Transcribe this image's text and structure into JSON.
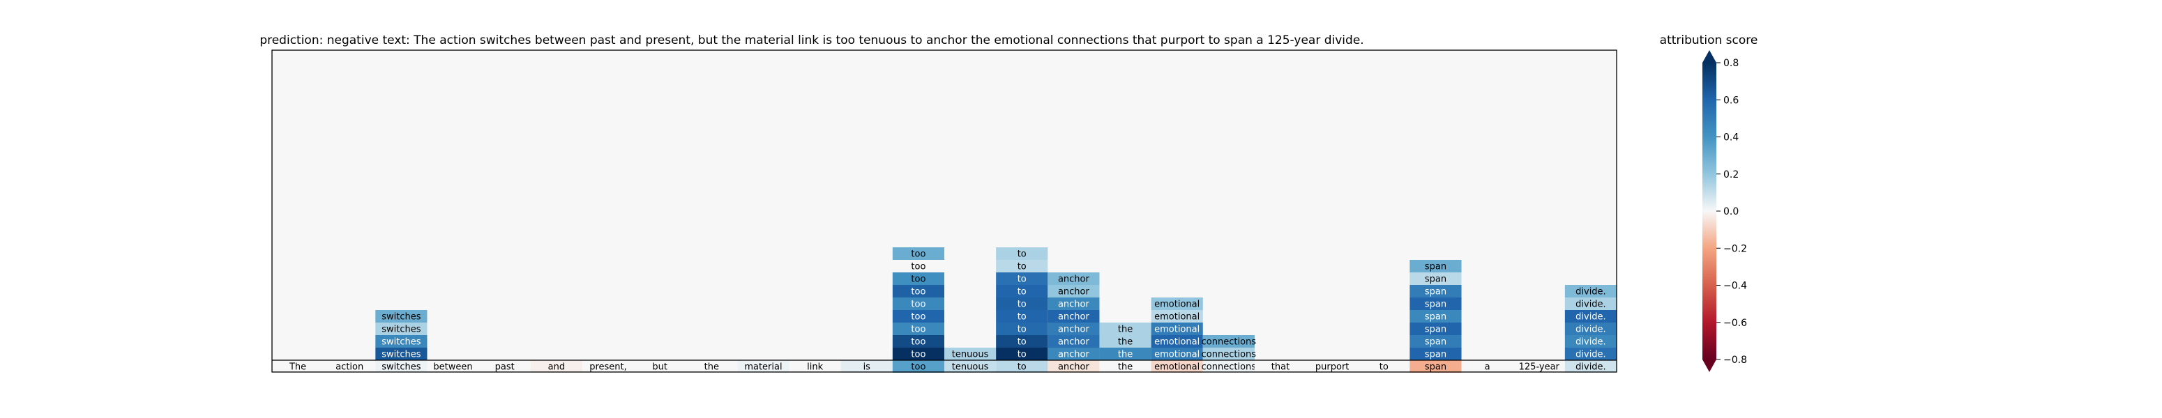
{
  "chart_data": {
    "type": "heatmap",
    "title": "prediction:  negative     text:  The action switches between past and present, but the material link is too tenuous to anchor the emotional connections that purport to span a 125-year divide.",
    "tokens": [
      "The",
      "action",
      "switches",
      "between",
      "past",
      "and",
      "present,",
      "but",
      "the",
      "material",
      "link",
      "is",
      "too",
      "tenuous",
      "to",
      "anchor",
      "the",
      "emotional",
      "connections",
      "that",
      "purport",
      "to",
      "span",
      "a",
      "125-year",
      "divide."
    ],
    "base_row_scores": [
      0.0,
      0.0,
      0.02,
      0.0,
      0.0,
      -0.02,
      0.0,
      0.0,
      0.0,
      0.02,
      0.0,
      0.04,
      0.35,
      0.1,
      0.12,
      -0.05,
      0.0,
      -0.08,
      0.02,
      0.0,
      0.0,
      0.0,
      -0.18,
      0.0,
      0.0,
      0.08
    ],
    "columns": [
      {
        "token_index": 2,
        "word": "switches",
        "scores": [
          0.3,
          0.15,
          0.45,
          0.65
        ]
      },
      {
        "token_index": 12,
        "word": "too",
        "scores": [
          0.3,
          0.0,
          0.42,
          0.62,
          0.45,
          0.6,
          0.45,
          0.7,
          0.9
        ]
      },
      {
        "token_index": 13,
        "word": "tenuous",
        "scores": [
          0.15
        ]
      },
      {
        "token_index": 14,
        "word": "to",
        "scores": [
          0.15,
          0.12,
          0.55,
          0.6,
          0.62,
          0.6,
          0.58,
          0.7,
          0.9
        ]
      },
      {
        "token_index": 15,
        "word": "anchor",
        "scores": [
          0.25,
          0.2,
          0.45,
          0.6,
          0.5,
          0.55,
          0.45
        ]
      },
      {
        "token_index": 16,
        "word": "the",
        "scores": [
          0.15,
          0.15,
          0.45
        ]
      },
      {
        "token_index": 17,
        "word": "emotional",
        "scores": [
          0.2,
          0.12,
          0.5,
          0.6,
          0.5
        ]
      },
      {
        "token_index": 18,
        "word": "connections",
        "scores": [
          0.3,
          0.15
        ]
      },
      {
        "token_index": 22,
        "word": "span",
        "scores": [
          0.3,
          0.12,
          0.5,
          0.6,
          0.45,
          0.6,
          0.5,
          0.6
        ]
      },
      {
        "token_index": 25,
        "word": "divide.",
        "scores": [
          0.25,
          0.15,
          0.6,
          0.5,
          0.45,
          0.55
        ]
      }
    ],
    "colorbar": {
      "label": "attribution score",
      "ticks": [
        "0.8",
        "0.6",
        "0.4",
        "0.2",
        "0.0",
        "−0.2",
        "−0.4",
        "−0.6",
        "−0.8"
      ],
      "range": [
        -0.8,
        0.8
      ],
      "colormap": "RdBu"
    }
  }
}
